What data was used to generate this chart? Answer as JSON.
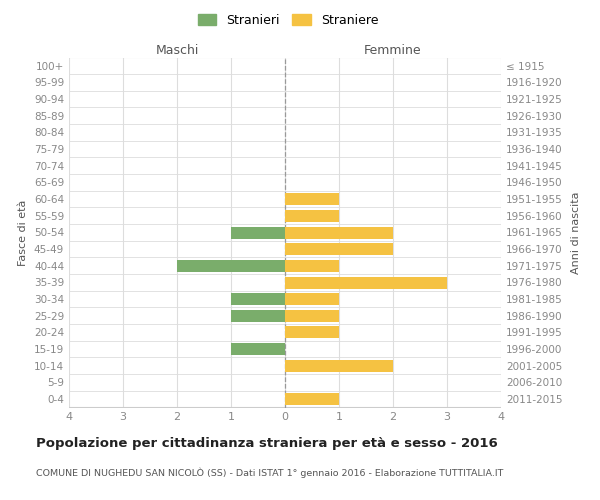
{
  "age_groups": [
    "100+",
    "95-99",
    "90-94",
    "85-89",
    "80-84",
    "75-79",
    "70-74",
    "65-69",
    "60-64",
    "55-59",
    "50-54",
    "45-49",
    "40-44",
    "35-39",
    "30-34",
    "25-29",
    "20-24",
    "15-19",
    "10-14",
    "5-9",
    "0-4"
  ],
  "birth_years": [
    "≤ 1915",
    "1916-1920",
    "1921-1925",
    "1926-1930",
    "1931-1935",
    "1936-1940",
    "1941-1945",
    "1946-1950",
    "1951-1955",
    "1956-1960",
    "1961-1965",
    "1966-1970",
    "1971-1975",
    "1976-1980",
    "1981-1985",
    "1986-1990",
    "1991-1995",
    "1996-2000",
    "2001-2005",
    "2006-2010",
    "2011-2015"
  ],
  "maschi": [
    0,
    0,
    0,
    0,
    0,
    0,
    0,
    0,
    0,
    0,
    1,
    0,
    2,
    0,
    1,
    1,
    0,
    1,
    0,
    0,
    0
  ],
  "femmine": [
    0,
    0,
    0,
    0,
    0,
    0,
    0,
    0,
    1,
    1,
    2,
    2,
    1,
    3,
    1,
    1,
    1,
    0,
    2,
    0,
    1
  ],
  "maschi_color": "#7aad6b",
  "femmine_color": "#f5c242",
  "title": "Popolazione per cittadinanza straniera per età e sesso - 2016",
  "subtitle": "COMUNE DI NUGHEDU SAN NICOLÒ (SS) - Dati ISTAT 1° gennaio 2016 - Elaborazione TUTTITALIA.IT",
  "xlabel_maschi": "Maschi",
  "xlabel_femmine": "Femmine",
  "ylabel_left": "Fasce di età",
  "ylabel_right": "Anni di nascita",
  "legend_maschi": "Stranieri",
  "legend_femmine": "Straniere",
  "xlim": 4,
  "background_color": "#ffffff",
  "grid_color": "#dddddd",
  "center_line_color": "#999999",
  "label_color": "#888888"
}
